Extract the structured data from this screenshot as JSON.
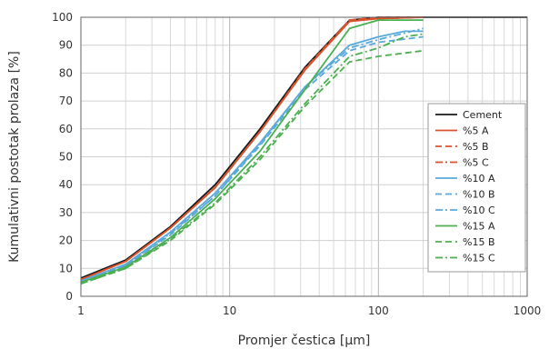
{
  "chart_data": {
    "type": "line",
    "title": "",
    "xlabel": "Promjer čestica [µm]",
    "ylabel": "Kumulativni postotak prolaza [%]",
    "xscale": "log",
    "xlim": [
      1,
      1000
    ],
    "ylim": [
      0,
      100
    ],
    "x_ticks": [
      "1",
      "10",
      "100",
      "1000"
    ],
    "y_ticks": [
      "0",
      "10",
      "20",
      "30",
      "40",
      "50",
      "60",
      "70",
      "80",
      "90",
      "100"
    ],
    "grid": true,
    "legend_position": "right",
    "series": [
      {
        "name": "Cement",
        "color": "#1a1a1a",
        "dash": "solid",
        "points": [
          [
            1,
            6.5
          ],
          [
            2,
            13
          ],
          [
            4,
            25
          ],
          [
            8,
            40
          ],
          [
            16,
            60
          ],
          [
            32,
            82
          ],
          [
            64,
            99
          ],
          [
            100,
            100
          ],
          [
            200,
            100
          ],
          [
            1000,
            100
          ]
        ]
      },
      {
        "name": "%5 A",
        "color": "#d9532c",
        "dash": "solid",
        "points": [
          [
            1,
            6
          ],
          [
            2,
            12.5
          ],
          [
            4,
            24.5
          ],
          [
            8,
            39
          ],
          [
            16,
            59
          ],
          [
            32,
            81
          ],
          [
            64,
            98.5
          ],
          [
            100,
            99.5
          ],
          [
            200,
            100
          ]
        ]
      },
      {
        "name": "%5 B",
        "color": "#d9532c",
        "dash": "dash",
        "points": [
          [
            1,
            6
          ],
          [
            2,
            12.5
          ],
          [
            4,
            24.5
          ],
          [
            8,
            39
          ],
          [
            16,
            59
          ],
          [
            32,
            81.5
          ],
          [
            64,
            99
          ],
          [
            100,
            100
          ],
          [
            200,
            100
          ]
        ]
      },
      {
        "name": "%5 C",
        "color": "#d9532c",
        "dash": "dashdot",
        "points": [
          [
            1,
            6
          ],
          [
            2,
            12.5
          ],
          [
            4,
            24.5
          ],
          [
            8,
            39
          ],
          [
            16,
            59
          ],
          [
            32,
            81
          ],
          [
            64,
            99
          ],
          [
            100,
            99.5
          ],
          [
            200,
            100
          ]
        ]
      },
      {
        "name": "%10 A",
        "color": "#5aa9dc",
        "dash": "solid",
        "points": [
          [
            1,
            5.5
          ],
          [
            2,
            11.5
          ],
          [
            4,
            23
          ],
          [
            8,
            37
          ],
          [
            16,
            55
          ],
          [
            32,
            75
          ],
          [
            64,
            90
          ],
          [
            100,
            93
          ],
          [
            150,
            95
          ],
          [
            200,
            95
          ]
        ]
      },
      {
        "name": "%10 B",
        "color": "#5aa9dc",
        "dash": "dash",
        "points": [
          [
            1,
            5.5
          ],
          [
            2,
            11
          ],
          [
            4,
            22
          ],
          [
            8,
            36
          ],
          [
            16,
            54
          ],
          [
            32,
            74
          ],
          [
            64,
            88
          ],
          [
            100,
            91
          ],
          [
            200,
            93
          ]
        ]
      },
      {
        "name": "%10 C",
        "color": "#5aa9dc",
        "dash": "dashdot",
        "points": [
          [
            1,
            5.5
          ],
          [
            2,
            11
          ],
          [
            4,
            22.5
          ],
          [
            8,
            36
          ],
          [
            16,
            54.5
          ],
          [
            32,
            75
          ],
          [
            64,
            89
          ],
          [
            100,
            92
          ],
          [
            200,
            96
          ]
        ]
      },
      {
        "name": "%15 A",
        "color": "#4caf50",
        "dash": "solid",
        "points": [
          [
            1,
            5
          ],
          [
            2,
            10.5
          ],
          [
            4,
            21
          ],
          [
            8,
            35
          ],
          [
            16,
            52
          ],
          [
            32,
            74
          ],
          [
            64,
            96
          ],
          [
            100,
            99
          ],
          [
            200,
            99
          ]
        ]
      },
      {
        "name": "%15 B",
        "color": "#4caf50",
        "dash": "dash",
        "points": [
          [
            1,
            4.5
          ],
          [
            2,
            10
          ],
          [
            4,
            20
          ],
          [
            8,
            33
          ],
          [
            16,
            49
          ],
          [
            32,
            68
          ],
          [
            64,
            84
          ],
          [
            100,
            86
          ],
          [
            200,
            88
          ]
        ]
      },
      {
        "name": "%15 C",
        "color": "#4caf50",
        "dash": "dashdot",
        "points": [
          [
            1,
            4.5
          ],
          [
            2,
            10
          ],
          [
            4,
            20.5
          ],
          [
            8,
            33.5
          ],
          [
            16,
            50
          ],
          [
            32,
            69
          ],
          [
            64,
            86
          ],
          [
            100,
            89
          ],
          [
            150,
            93
          ],
          [
            200,
            94
          ]
        ]
      }
    ]
  }
}
